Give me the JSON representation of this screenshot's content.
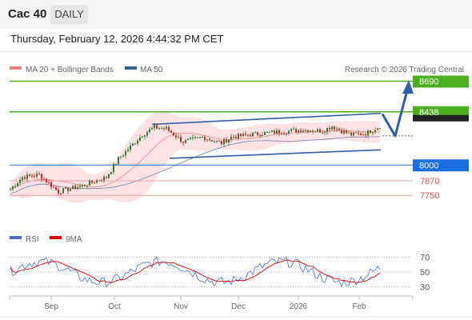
{
  "header": {
    "title": "Cac 40",
    "timeframe": "DAILY"
  },
  "datetime": "Thursday, February 12, 2026 4:44:32 PM CET",
  "legend": {
    "bollinger": "MA 20 + Bollinger Bands",
    "ma50": "MA 50",
    "credit": "Research © 2026 Trading Central"
  },
  "rsi_legend": {
    "rsi": "RSI",
    "ma9": "9MA"
  },
  "colors": {
    "bollinger": "#f08080",
    "ma50": "#3a5a9c",
    "resistance": "#4caf20",
    "support": "#1a6fe0",
    "target": "#e05050",
    "arrow": "#2f5fa8"
  },
  "chart_data": {
    "type": "candlestick",
    "x_tick_labels": [
      "Sep",
      "Oct",
      "Nov",
      "Dec",
      "2026",
      "Feb"
    ],
    "price_levels": [
      {
        "value": 8690,
        "label": "8690",
        "kind": "resistance"
      },
      {
        "value": 8438,
        "label": "8438",
        "kind": "resistance"
      },
      {
        "value": 8000,
        "label": "8000",
        "kind": "pivot"
      },
      {
        "value": 7870,
        "label": "7870",
        "kind": "support"
      },
      {
        "value": 7750,
        "label": "7750",
        "kind": "support"
      }
    ],
    "y_range": [
      7580,
      8700
    ],
    "rsi": {
      "levels": [
        70,
        50,
        30
      ],
      "labels": [
        "70",
        "50",
        "30"
      ],
      "range": [
        20,
        80
      ]
    }
  }
}
